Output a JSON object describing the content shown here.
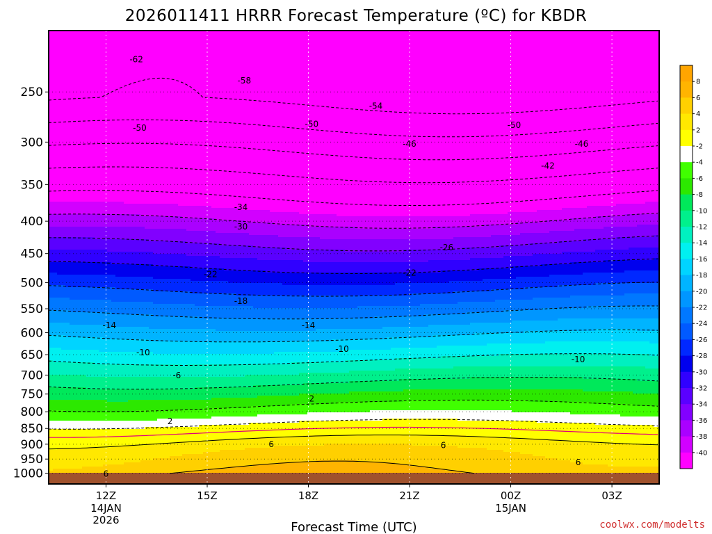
{
  "chart_data": {
    "type": "heatmap",
    "title": "2026011411 HRRR Forecast Temperature (ºC) for KBDR",
    "xlabel": "Forecast Time (UTC)",
    "credit": "coolwx.com/modelts",
    "y_axis": {
      "scale": "log-pressure",
      "range": [
        1040,
        200
      ],
      "ticks": [
        250,
        300,
        350,
        400,
        450,
        500,
        550,
        600,
        650,
        700,
        750,
        800,
        850,
        900,
        950,
        1000
      ]
    },
    "x_axis": {
      "range_hours": [
        -1.7,
        16.4
      ],
      "ticks": [
        {
          "hour": 0,
          "label": "12Z",
          "sub": [
            "14JAN",
            "2026"
          ]
        },
        {
          "hour": 3,
          "label": "15Z",
          "sub": []
        },
        {
          "hour": 6,
          "label": "18Z",
          "sub": []
        },
        {
          "hour": 9,
          "label": "21Z",
          "sub": []
        },
        {
          "hour": 12,
          "label": "00Z",
          "sub": [
            "15JAN"
          ]
        },
        {
          "hour": 15,
          "label": "03Z",
          "sub": []
        }
      ]
    },
    "colorbar": {
      "labels": [
        "8",
        "6",
        "4",
        "2",
        "-2",
        "-4",
        "-6",
        "-8",
        "-10",
        "-12",
        "-14",
        "-16",
        "-18",
        "-20",
        "-22",
        "-24",
        "-26",
        "-28",
        "-30",
        "-32",
        "-34",
        "-36",
        "-38",
        "-40"
      ],
      "colors": [
        "#ffa500",
        "#ffb400",
        "#ffd000",
        "#ffe800",
        "#ffff00",
        "#ffffff",
        "#40ff00",
        "#2ce800",
        "#00e85a",
        "#00f08c",
        "#00f0c0",
        "#00f0f0",
        "#00d4ff",
        "#00b4ff",
        "#0096ff",
        "#0078ff",
        "#005aff",
        "#0028ff",
        "#0000ee",
        "#3000ff",
        "#5a00ff",
        "#8200ff",
        "#aa00ff",
        "#d200ff",
        "#ff00ff"
      ]
    },
    "ground_color": "#a0522d",
    "contour_labels": [
      {
        "text": "-62",
        "hour": 0.9,
        "p": 222
      },
      {
        "text": "-58",
        "hour": 4.1,
        "p": 240
      },
      {
        "text": "-54",
        "hour": 8.0,
        "p": 263
      },
      {
        "text": "-50",
        "hour": 1.0,
        "p": 285
      },
      {
        "text": "-50",
        "hour": 6.1,
        "p": 281
      },
      {
        "text": "-50",
        "hour": 12.1,
        "p": 282
      },
      {
        "text": "-46",
        "hour": 9.0,
        "p": 302
      },
      {
        "text": "-46",
        "hour": 14.1,
        "p": 302
      },
      {
        "text": "-42",
        "hour": 13.1,
        "p": 327
      },
      {
        "text": "-34",
        "hour": 4.0,
        "p": 380
      },
      {
        "text": "-30",
        "hour": 4.0,
        "p": 408
      },
      {
        "text": "-26",
        "hour": 10.1,
        "p": 440
      },
      {
        "text": "-22",
        "hour": 3.1,
        "p": 485
      },
      {
        "text": "-22",
        "hour": 9.0,
        "p": 483
      },
      {
        "text": "-18",
        "hour": 4.0,
        "p": 535
      },
      {
        "text": "-14",
        "hour": 0.1,
        "p": 584
      },
      {
        "text": "-14",
        "hour": 6.0,
        "p": 584
      },
      {
        "text": "-10",
        "hour": 1.1,
        "p": 645
      },
      {
        "text": "-10",
        "hour": 7.0,
        "p": 637
      },
      {
        "text": "-10",
        "hour": 14.0,
        "p": 661
      },
      {
        "text": "-6",
        "hour": 2.1,
        "p": 701
      },
      {
        "text": "2",
        "hour": 6.1,
        "p": 763
      },
      {
        "text": "2",
        "hour": 1.9,
        "p": 828
      },
      {
        "text": "6",
        "hour": 4.9,
        "p": 900
      },
      {
        "text": "6",
        "hour": 10.0,
        "p": 904
      },
      {
        "text": "6",
        "hour": 14.0,
        "p": 961
      },
      {
        "text": "6",
        "hour": 0.0,
        "p": 1003
      }
    ]
  }
}
